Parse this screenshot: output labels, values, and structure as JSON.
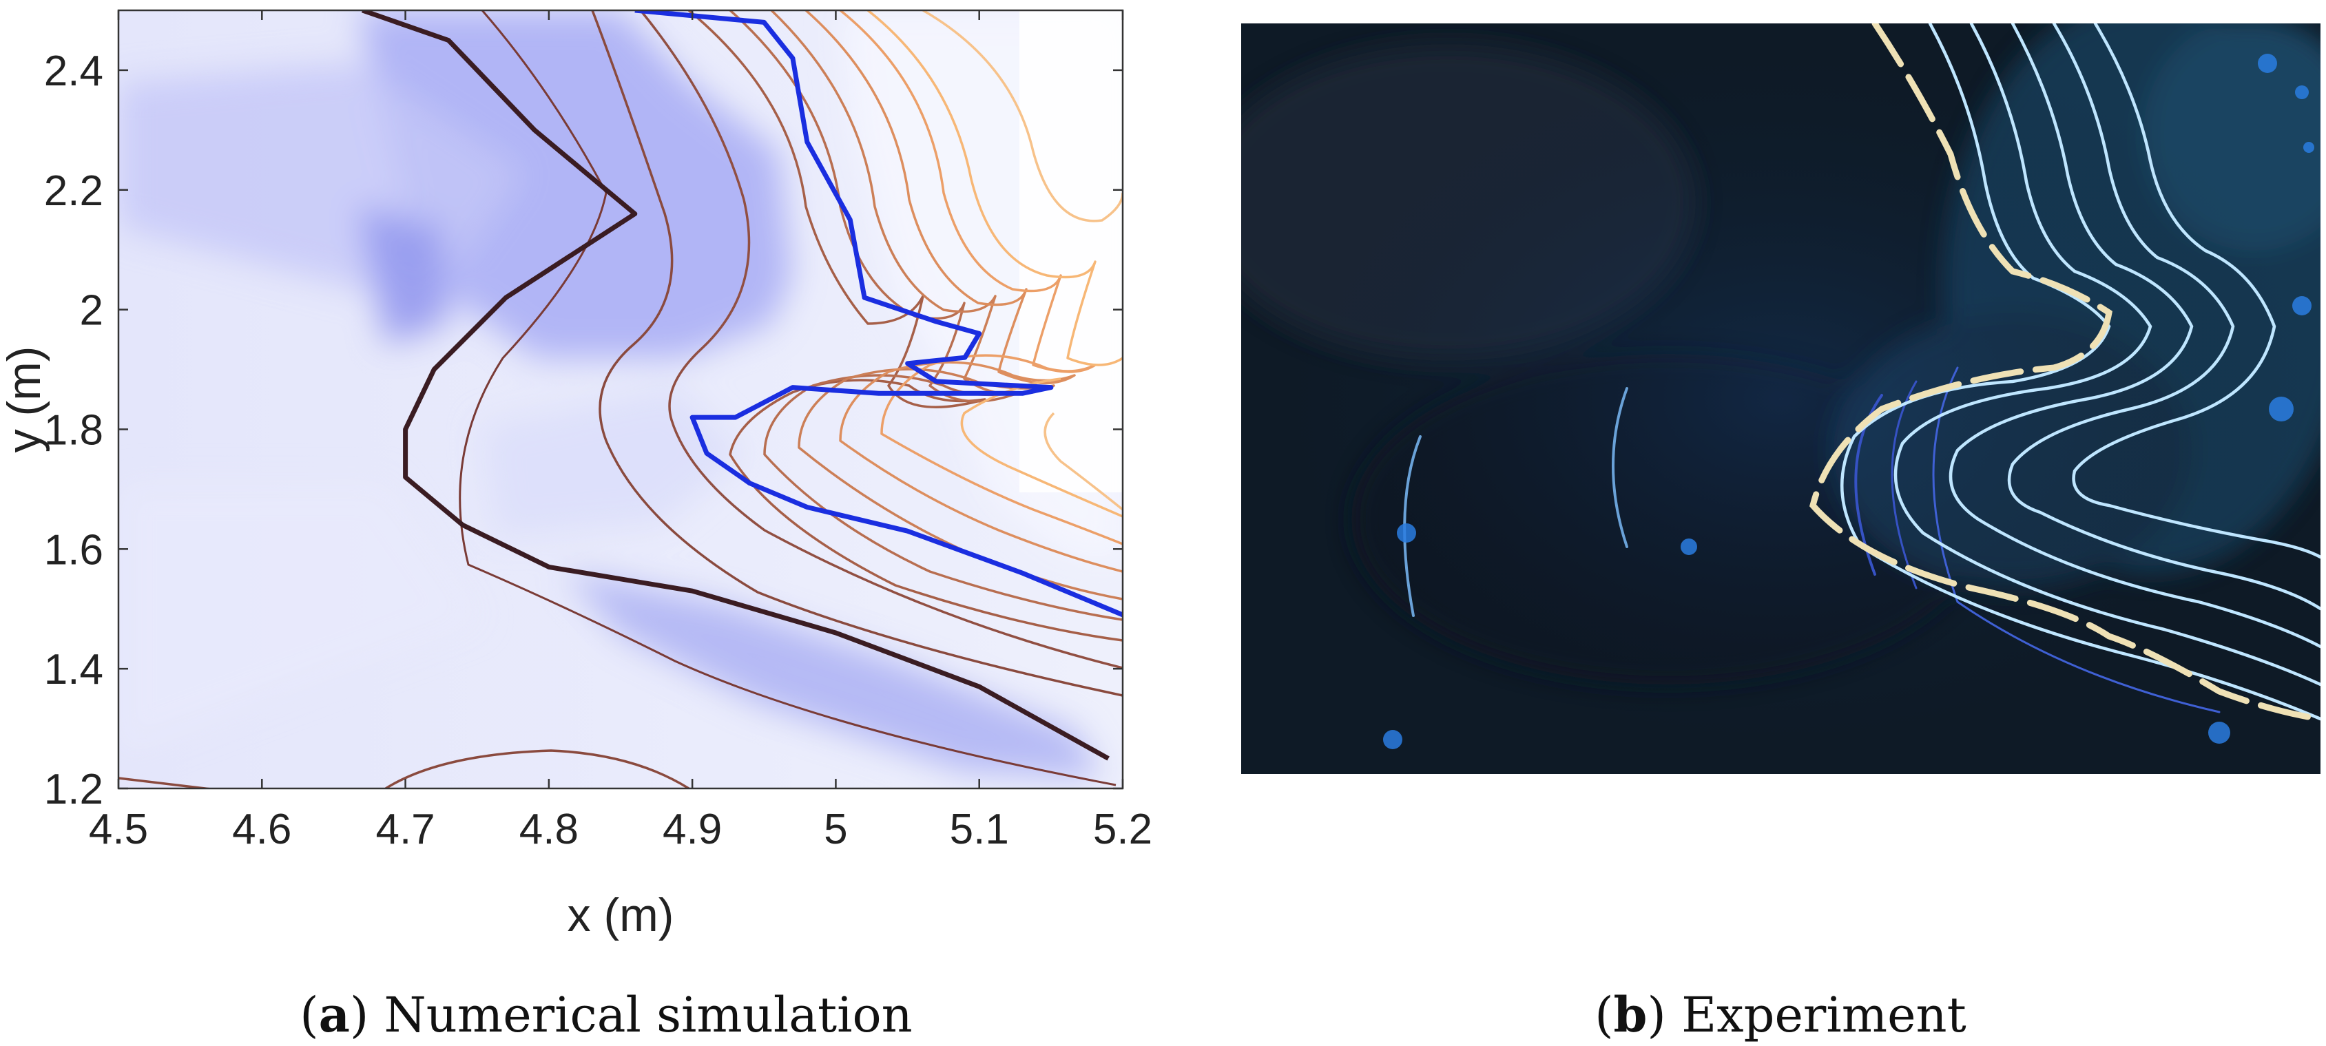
{
  "panels": [
    {
      "id": "a",
      "caption_letter": "a",
      "caption_text": "Numerical simulation"
    },
    {
      "id": "b",
      "caption_letter": "b",
      "caption_text": "Experiment"
    }
  ],
  "chart_data": {
    "type": "contour",
    "xlabel": "x (m)",
    "ylabel": "y (m)",
    "xlim": [
      4.5,
      5.2
    ],
    "ylim": [
      1.2,
      2.5
    ],
    "xticks": [
      4.5,
      4.6,
      4.7,
      4.8,
      4.9,
      5.0,
      5.1,
      5.2
    ],
    "xtick_labels": [
      "4.5",
      "4.6",
      "4.7",
      "4.8",
      "4.9",
      "5",
      "5.1",
      "5.2"
    ],
    "yticks": [
      1.2,
      1.4,
      1.6,
      1.8,
      2.0,
      2.2,
      2.4
    ],
    "ytick_labels": [
      "1.2",
      "1.4",
      "1.6",
      "1.8",
      "2",
      "2.2",
      "2.4"
    ],
    "grid": false,
    "colors": {
      "background": "#e4e6fb",
      "dark_contour": "#3a1c22",
      "front_contour": "#1a2ee0",
      "warm_low": "#8a4a3e",
      "warm_high": "#f7b776"
    },
    "front_line": [
      [
        4.86,
        2.5
      ],
      [
        4.95,
        2.48
      ],
      [
        4.97,
        2.42
      ],
      [
        4.98,
        2.28
      ],
      [
        5.01,
        2.15
      ],
      [
        5.02,
        2.02
      ],
      [
        5.07,
        1.98
      ],
      [
        5.1,
        1.96
      ],
      [
        5.09,
        1.92
      ],
      [
        5.05,
        1.91
      ],
      [
        5.07,
        1.88
      ],
      [
        5.15,
        1.87
      ],
      [
        5.13,
        1.86
      ],
      [
        5.03,
        1.86
      ],
      [
        4.97,
        1.87
      ],
      [
        4.93,
        1.82
      ],
      [
        4.9,
        1.82
      ],
      [
        4.91,
        1.76
      ],
      [
        4.94,
        1.71
      ],
      [
        4.98,
        1.67
      ],
      [
        5.05,
        1.63
      ],
      [
        5.13,
        1.56
      ],
      [
        5.2,
        1.49
      ]
    ],
    "dark_contour": [
      [
        4.67,
        2.5
      ],
      [
        4.73,
        2.45
      ],
      [
        4.79,
        2.3
      ],
      [
        4.86,
        2.16
      ],
      [
        4.77,
        2.02
      ],
      [
        4.72,
        1.9
      ],
      [
        4.7,
        1.8
      ],
      [
        4.7,
        1.72
      ],
      [
        4.74,
        1.64
      ],
      [
        4.8,
        1.57
      ],
      [
        4.9,
        1.53
      ],
      [
        5.0,
        1.46
      ],
      [
        5.1,
        1.37
      ],
      [
        5.19,
        1.25
      ]
    ]
  }
}
